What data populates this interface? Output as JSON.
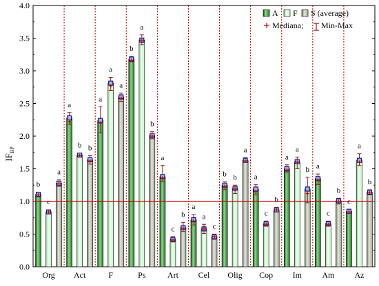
{
  "chart_data": {
    "type": "bar",
    "ylabel": "IF",
    "ylabel_subscript": "BP",
    "ylim": [
      0,
      4
    ],
    "yticks": [
      "0.0",
      "0.5",
      "1.0",
      "1.5",
      "2.0",
      "2.5",
      "3.0",
      "3.5",
      "4.0"
    ],
    "grid": false,
    "reference_line": 1.0,
    "legend_position": "top-right",
    "legend": {
      "series_labels": [
        "A",
        "F",
        "S (average)"
      ],
      "median_label": "Mediana;",
      "minmax_label": "Min-Max"
    },
    "categories": [
      "Org",
      "Act",
      "F",
      "Ps",
      "Art",
      "Cel",
      "Olig",
      "Cop",
      "Im",
      "Am",
      "Az"
    ],
    "series": [
      {
        "name": "A",
        "values": [
          1.11,
          2.28,
          2.24,
          3.18,
          1.38,
          0.72,
          1.25,
          1.19,
          1.5,
          1.35,
          0.85
        ],
        "median": [
          1.1,
          2.22,
          2.2,
          3.16,
          1.36,
          0.7,
          1.23,
          1.15,
          1.48,
          1.33,
          0.84
        ],
        "min": [
          1.07,
          2.18,
          2.05,
          3.14,
          1.3,
          0.64,
          1.18,
          1.1,
          1.45,
          1.26,
          0.83
        ],
        "max": [
          1.14,
          2.36,
          2.45,
          3.22,
          1.55,
          0.8,
          1.3,
          1.26,
          1.56,
          1.42,
          0.88
        ],
        "significance": [
          "b",
          "a",
          "a",
          "b",
          "a",
          "a",
          "b",
          "a",
          "a",
          "a",
          "c"
        ]
      },
      {
        "name": "F",
        "values": [
          0.84,
          1.71,
          2.81,
          3.47,
          0.42,
          0.58,
          1.2,
          0.66,
          1.61,
          0.66,
          1.63
        ],
        "median": [
          0.84,
          1.7,
          2.77,
          3.46,
          0.41,
          0.58,
          1.19,
          0.65,
          1.6,
          0.65,
          1.6
        ],
        "min": [
          0.81,
          1.68,
          2.7,
          3.4,
          0.38,
          0.51,
          1.12,
          0.62,
          1.5,
          0.62,
          1.55
        ],
        "max": [
          0.87,
          1.74,
          2.9,
          3.55,
          0.46,
          0.65,
          1.25,
          0.7,
          1.68,
          0.7,
          1.73
        ],
        "significance": [
          "c",
          "b",
          "a",
          "a",
          "c",
          "a",
          "b",
          "c",
          "a",
          "c",
          "a"
        ]
      },
      {
        "name": "S (average)",
        "values": [
          1.28,
          1.64,
          2.6,
          2.01,
          0.6,
          0.46,
          1.63,
          0.87,
          1.19,
          1.01,
          1.14
        ],
        "median": [
          1.27,
          1.62,
          2.58,
          2.0,
          0.59,
          0.46,
          1.62,
          0.87,
          1.12,
          1.0,
          1.13
        ],
        "min": [
          1.23,
          1.57,
          2.53,
          1.96,
          0.54,
          0.42,
          1.6,
          0.84,
          0.98,
          0.96,
          1.1
        ],
        "max": [
          1.33,
          1.7,
          2.66,
          2.07,
          0.68,
          0.5,
          1.67,
          0.91,
          1.37,
          1.05,
          1.18
        ],
        "significance": [
          "a",
          "b",
          "a",
          "b",
          "b",
          "c",
          "a",
          "b",
          "b",
          "b",
          "b"
        ]
      }
    ],
    "colors": {
      "A": {
        "fill": "#1e7d1e",
        "dark": "#145a14",
        "light": "#8fd48f"
      },
      "F": {
        "fill": "#c4f0c4",
        "dark": "#84c684",
        "light": "#f0fff0"
      },
      "S (average)": {
        "fill": "#a5ac96",
        "dark": "#6e7660",
        "light": "#e3e6dc"
      },
      "marker_fill": "#a8b4e8",
      "marker_stroke": "#1a1a7a",
      "median": "#cc0000",
      "minmax": "#8a1a1a",
      "reference_line": "#cc0000",
      "separator": "#b00000"
    }
  }
}
